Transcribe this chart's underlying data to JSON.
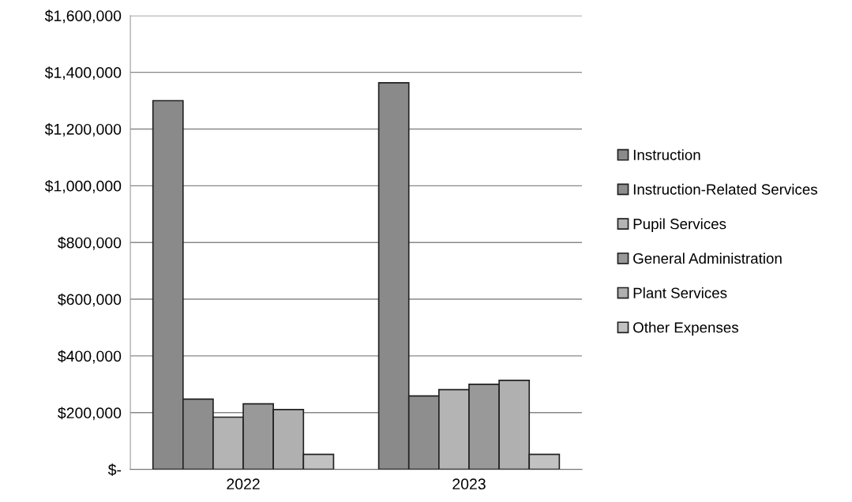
{
  "chart_data": {
    "type": "bar",
    "categories": [
      "2022",
      "2023"
    ],
    "series": [
      {
        "name": "Instruction",
        "color": "#8a8a8a",
        "values": [
          1300000,
          1363000
        ]
      },
      {
        "name": "Instruction-Related Services",
        "color": "#8e8e8e",
        "values": [
          248000,
          259000
        ]
      },
      {
        "name": "Pupil Services",
        "color": "#b4b4b4",
        "values": [
          184000,
          281000
        ]
      },
      {
        "name": "General Administration",
        "color": "#999999",
        "values": [
          231000,
          300000
        ]
      },
      {
        "name": "Plant Services",
        "color": "#b0b0b0",
        "values": [
          211000,
          314000
        ]
      },
      {
        "name": "Other Expenses",
        "color": "#c2c2c2",
        "values": [
          53000,
          53000
        ]
      }
    ],
    "ylim": [
      0,
      1600000
    ],
    "yticks": [
      {
        "value": 0,
        "label": "$-"
      },
      {
        "value": 200000,
        "label": "$200,000"
      },
      {
        "value": 400000,
        "label": "$400,000"
      },
      {
        "value": 600000,
        "label": "$600,000"
      },
      {
        "value": 800000,
        "label": "$800,000"
      },
      {
        "value": 1000000,
        "label": "$1,000,000"
      },
      {
        "value": 1200000,
        "label": "$1,200,000"
      },
      {
        "value": 1400000,
        "label": "$1,400,000"
      },
      {
        "value": 1600000,
        "label": "$1,600,000"
      }
    ],
    "grid": "y",
    "legend": "right"
  }
}
